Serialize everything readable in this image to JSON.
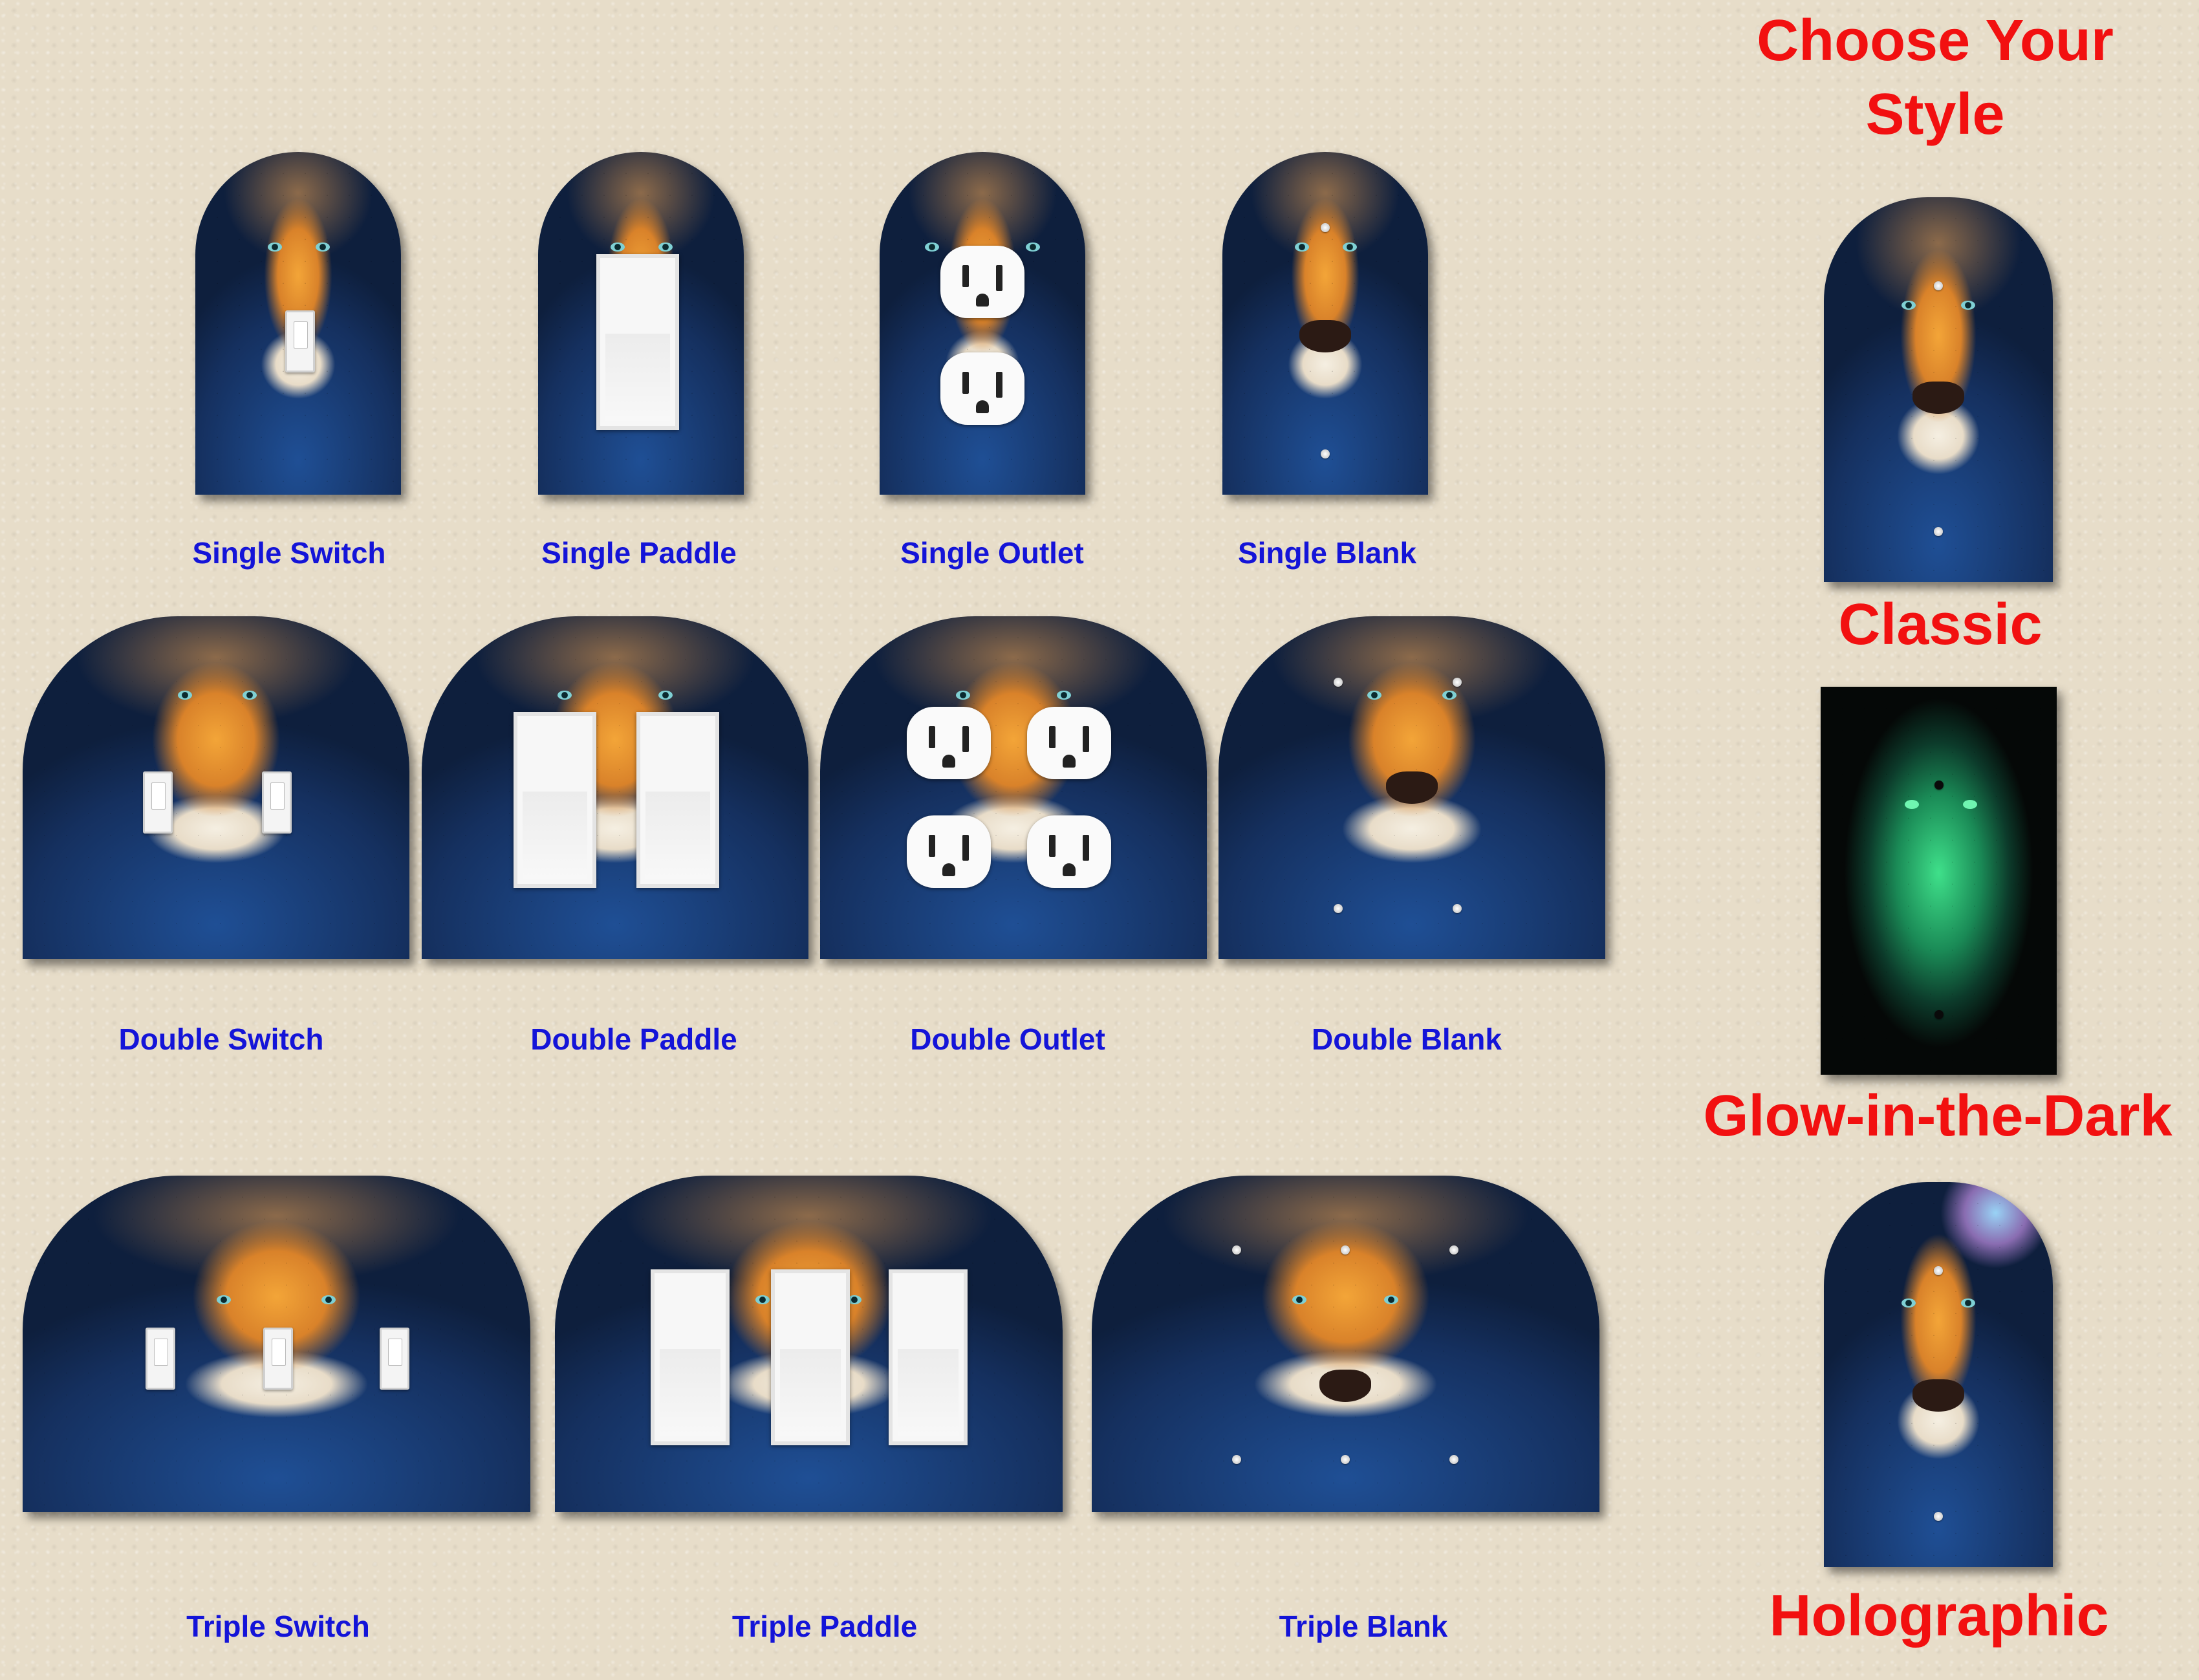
{
  "heading": {
    "line1": "Choose Your",
    "line2": "Style"
  },
  "single_row": [
    "Single Switch",
    "Single Paddle",
    "Single Outlet",
    "Single Blank"
  ],
  "double_row": [
    "Double Switch",
    "Double Paddle",
    "Double Outlet",
    "Double Blank"
  ],
  "triple_row": [
    "Triple Switch",
    "Triple Paddle",
    "Triple Blank"
  ],
  "styles": [
    "Classic",
    "Glow-in-the-Dark",
    "Holographic"
  ],
  "colors": {
    "label_blue": "#1414d8",
    "heading_red": "#f21010",
    "background": "#e7ddc9"
  }
}
